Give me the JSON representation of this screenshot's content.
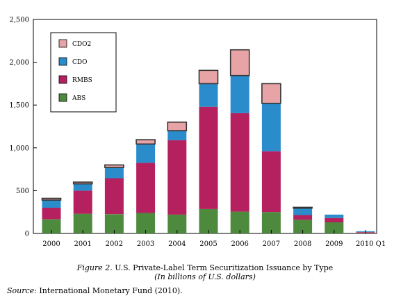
{
  "chart_data": {
    "type": "bar",
    "stacked": true,
    "categories": [
      "2000",
      "2001",
      "2002",
      "2003",
      "2004",
      "2005",
      "2006",
      "2007",
      "2008",
      "2009",
      "2010 Q1"
    ],
    "series": [
      {
        "name": "ABS",
        "color": "#4e8a3e",
        "values": [
          165,
          230,
          225,
          240,
          220,
          285,
          255,
          250,
          160,
          130,
          5
        ]
      },
      {
        "name": "RMBS",
        "color": "#b5205e",
        "values": [
          135,
          270,
          420,
          585,
          870,
          1195,
          1150,
          710,
          55,
          50,
          10
        ]
      },
      {
        "name": "CDO",
        "color": "#2b8ccc",
        "values": [
          90,
          80,
          125,
          220,
          110,
          270,
          440,
          560,
          80,
          40,
          10
        ]
      },
      {
        "name": "CDO2",
        "color": "#e8a3a6",
        "values": [
          20,
          20,
          30,
          50,
          100,
          155,
          300,
          230,
          10,
          0,
          0
        ]
      }
    ],
    "legend_order": [
      "CDO2",
      "CDO",
      "RMBS",
      "ABS"
    ],
    "yticks": [
      "0",
      "500",
      "1,000",
      "1,500",
      "2,000",
      "2,500"
    ],
    "ylim": [
      0,
      2500
    ],
    "grid": false,
    "legend_position": "top-left"
  },
  "caption": {
    "figure_label": "Figure 2.",
    "title": "U.S. Private-Label Term Securitization Issuance by Type",
    "units": "(In billions of U.S. dollars)"
  },
  "source": {
    "label": "Source:",
    "text": "International Monetary Fund (2010)."
  }
}
